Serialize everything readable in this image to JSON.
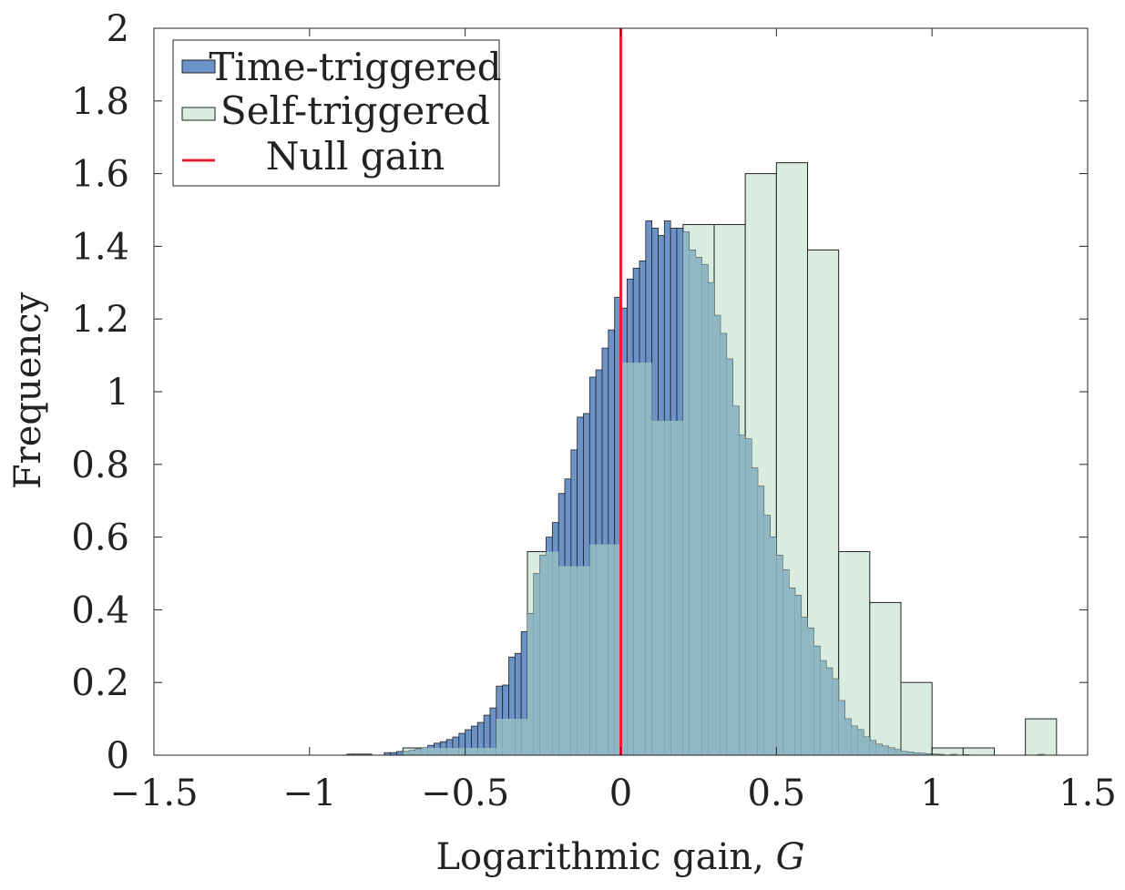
{
  "chart_data": {
    "type": "bar",
    "title": "",
    "xlabel": "Logarithmic gain, G",
    "xlabel_parts": {
      "text": "Logarithmic gain, ",
      "var": "G"
    },
    "ylabel": "Frequency",
    "xlim": [
      -1.5,
      1.5
    ],
    "ylim": [
      0,
      2
    ],
    "xticks": [
      -1.5,
      -1,
      -0.5,
      0,
      0.5,
      1,
      1.5
    ],
    "xtick_labels": [
      "−1.5",
      "−1",
      "−0.5",
      "0",
      "0.5",
      "1",
      "1.5"
    ],
    "yticks": [
      0,
      0.2,
      0.4,
      0.6,
      0.8,
      1,
      1.2,
      1.4,
      1.6,
      1.8,
      2
    ],
    "ytick_labels": [
      "0",
      "0.2",
      "0.4",
      "0.6",
      "0.8",
      "1",
      "1.2",
      "1.4",
      "1.6",
      "1.8",
      "2"
    ],
    "grid": false,
    "legend_position": "top-left",
    "null_gain_x": 0,
    "series": [
      {
        "name": "Time-triggered",
        "kind": "histogram",
        "color": "#6b93c8",
        "bin_start": -0.88,
        "bin_width": 0.02,
        "values": [
          0.003,
          0.003,
          0.003,
          0.003,
          0.0,
          0.0,
          0.007,
          0.007,
          0.01,
          0.01,
          0.013,
          0.017,
          0.02,
          0.027,
          0.033,
          0.037,
          0.043,
          0.05,
          0.06,
          0.07,
          0.08,
          0.09,
          0.11,
          0.13,
          0.19,
          0.193,
          0.27,
          0.28,
          0.34,
          0.39,
          0.5,
          0.55,
          0.6,
          0.64,
          0.72,
          0.76,
          0.84,
          0.93,
          0.94,
          1.04,
          1.06,
          1.12,
          1.17,
          1.26,
          1.23,
          1.31,
          1.34,
          1.36,
          1.47,
          1.45,
          1.43,
          1.47,
          1.45,
          1.45,
          1.44,
          1.39,
          1.37,
          1.35,
          1.3,
          1.21,
          1.16,
          1.09,
          0.96,
          0.88,
          0.87,
          0.79,
          0.74,
          0.66,
          0.6,
          0.55,
          0.51,
          0.46,
          0.44,
          0.38,
          0.35,
          0.3,
          0.26,
          0.24,
          0.21,
          0.15,
          0.1,
          0.08,
          0.07,
          0.05,
          0.04,
          0.03,
          0.025,
          0.02,
          0.015,
          0.01,
          0.008,
          0.006,
          0.005,
          0.004,
          0.003,
          0.002,
          0.0,
          0.002,
          0.0,
          0.001,
          0.0,
          0.0,
          0.0,
          0.0,
          0.0,
          0.0,
          0.0,
          0.0,
          0.0,
          0.0,
          0.0,
          0.002
        ]
      },
      {
        "name": "Self-triggered",
        "kind": "histogram",
        "color": "#d8eddf",
        "bin_start": -0.7,
        "bin_width": 0.1,
        "values": [
          0.02,
          0.02,
          0.02,
          0.1,
          0.56,
          0.52,
          0.58,
          1.08,
          0.92,
          1.46,
          1.46,
          1.6,
          1.63,
          1.39,
          0.56,
          0.42,
          0.2,
          0.02,
          0.02,
          0.0,
          0.1
        ]
      },
      {
        "name": "Null gain",
        "kind": "vline",
        "color": "#e8212e",
        "x": 0
      }
    ]
  }
}
